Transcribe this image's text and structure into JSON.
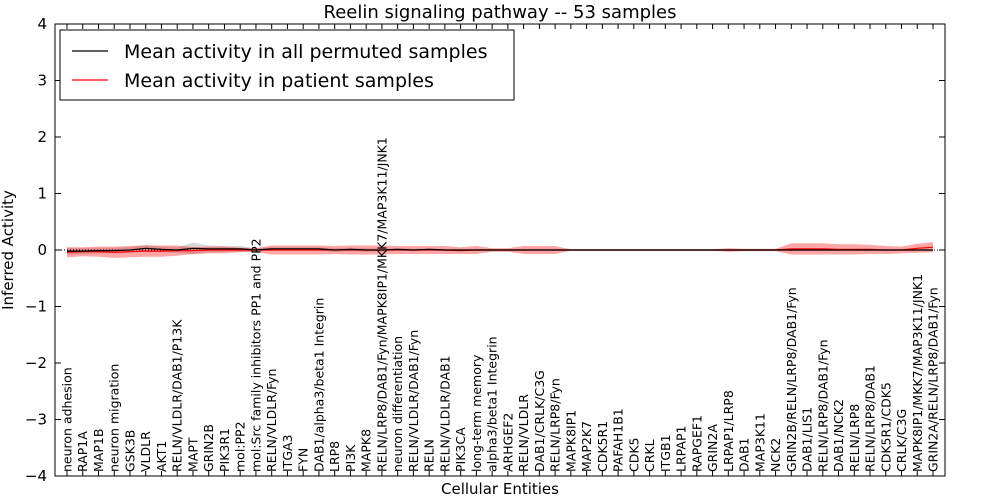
{
  "chart_data": {
    "type": "line",
    "title": "Reelin signaling pathway -- 53 samples",
    "xlabel": "Cellular Entities",
    "ylabel": "Inferred Activity",
    "ylim": [
      -4,
      4
    ],
    "yticks": [
      "4",
      "3",
      "2",
      "1",
      "0",
      "−1",
      "−2",
      "−3",
      "−4"
    ],
    "ytick_values": [
      4,
      3,
      2,
      1,
      0,
      -1,
      -2,
      -3,
      -4
    ],
    "legend_position": "top-left",
    "categories": [
      "neuron adhesion",
      "RAP1A",
      "MAP1B",
      "neuron migration",
      "GSK3B",
      "VLDLR",
      "AKT1",
      "RELN/VLDLR/DAB1/P13K",
      "MAPT",
      "GRIN2B",
      "PIK3R1",
      "mol:PP2",
      "mol:Src family inhibitors PP1 and PP2",
      "RELN/VLDLR/Fyn",
      "ITGA3",
      "FYN",
      "DAB1/alpha3/beta1 Integrin",
      "LRP8",
      "PI3K",
      "MAPK8",
      "RELN/LRP8/DAB1/Fyn/MAPK8IP1/MKK7/MAP3K11/JNK1",
      "neuron differentiation",
      "RELN/VLDLR/DAB1/Fyn",
      "RELN",
      "RELN/VLDLR/DAB1",
      "PIK3CA",
      "long-term memory",
      "alpha3/beta1 Integrin",
      "ARHGEF2",
      "RELN/VLDLR",
      "DAB1/CRLK/C3G",
      "RELN/LRP8/Fyn",
      "MAPK8IP1",
      "MAP2K7",
      "CDK5R1",
      "PAFAH1B1",
      "CDK5",
      "CRKL",
      "ITGB1",
      "LRPAP1",
      "RAPGEF1",
      "GRIN2A",
      "LRPAP1/LRP8",
      "DAB1",
      "MAP3K11",
      "NCK2",
      "GRIN2B/RELN/LRP8/DAB1/Fyn",
      "DAB1/LIS1",
      "RELN/LRP8/DAB1/Fyn",
      "DAB1/NCK2",
      "RELN/LRP8",
      "RELN/LRP8/DAB1",
      "CDK5R1/CDK5",
      "CRLK/C3G",
      "MAPK8IP1/MKK7/MAP3K11/JNK1",
      "GRIN2A/RELN/LRP8/DAB1/Fyn"
    ],
    "series": [
      {
        "name": "Mean activity in all permuted samples",
        "color": "#000000",
        "values": [
          -0.02,
          -0.02,
          -0.01,
          -0.01,
          0.0,
          0.03,
          0.01,
          0.0,
          0.03,
          0.02,
          0.02,
          0.02,
          0.0,
          0.02,
          0.02,
          0.02,
          0.02,
          0.0,
          0.01,
          0.0,
          0.0,
          0.01,
          0.0,
          0.01,
          0.0,
          0.0,
          0.0,
          0.0,
          0.0,
          0.0,
          0.0,
          0.0,
          0.0,
          0.0,
          0.0,
          0.0,
          0.0,
          0.0,
          0.0,
          0.0,
          0.0,
          0.0,
          0.0,
          0.0,
          0.0,
          0.0,
          0.0,
          0.0,
          0.0,
          0.0,
          0.0,
          0.0,
          0.0,
          0.0,
          0.0,
          0.0
        ],
        "band": [
          0.06,
          0.05,
          0.05,
          0.05,
          0.05,
          0.06,
          0.05,
          0.05,
          0.1,
          0.06,
          0.05,
          0.05,
          0.03,
          0.03,
          0.03,
          0.03,
          0.03,
          0.03,
          0.03,
          0.03,
          0.03,
          0.02,
          0.02,
          0.02,
          0.02,
          0.02,
          0.02,
          0.02,
          0.02,
          0.02,
          0.02,
          0.02,
          0.02,
          0.02,
          0.02,
          0.02,
          0.02,
          0.02,
          0.02,
          0.02,
          0.02,
          0.02,
          0.02,
          0.02,
          0.02,
          0.02,
          0.02,
          0.02,
          0.02,
          0.02,
          0.02,
          0.02,
          0.02,
          0.02,
          0.02,
          0.02
        ]
      },
      {
        "name": "Mean activity in patient samples",
        "color": "#ff0000",
        "values": [
          -0.04,
          -0.03,
          -0.03,
          -0.04,
          -0.03,
          -0.02,
          -0.02,
          -0.01,
          -0.01,
          0.0,
          0.0,
          0.0,
          0.0,
          0.0,
          0.0,
          0.0,
          0.0,
          0.0,
          0.0,
          0.0,
          0.0,
          0.0,
          0.0,
          0.0,
          0.0,
          -0.01,
          0.0,
          0.0,
          0.0,
          0.0,
          0.0,
          0.0,
          0.0,
          0.0,
          0.0,
          0.0,
          0.0,
          0.0,
          0.0,
          0.0,
          0.0,
          0.0,
          0.0,
          0.0,
          0.0,
          0.0,
          0.02,
          0.02,
          0.02,
          0.01,
          0.01,
          0.01,
          0.0,
          0.0,
          0.03,
          0.05
        ],
        "band": [
          0.09,
          0.08,
          0.09,
          0.1,
          0.1,
          0.1,
          0.1,
          0.09,
          0.06,
          0.06,
          0.06,
          0.04,
          0.03,
          0.08,
          0.08,
          0.08,
          0.08,
          0.07,
          0.08,
          0.08,
          0.08,
          0.07,
          0.07,
          0.07,
          0.07,
          0.06,
          0.07,
          0.03,
          0.03,
          0.07,
          0.07,
          0.07,
          0.01,
          0.01,
          0.01,
          0.01,
          0.01,
          0.01,
          0.01,
          0.01,
          0.01,
          0.01,
          0.03,
          0.02,
          0.02,
          0.02,
          0.1,
          0.1,
          0.1,
          0.09,
          0.09,
          0.08,
          0.07,
          0.06,
          0.08,
          0.09
        ]
      }
    ]
  }
}
